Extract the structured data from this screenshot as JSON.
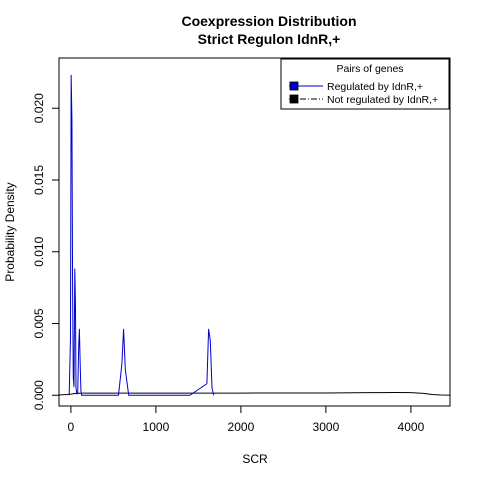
{
  "chart_data": {
    "type": "line",
    "title": "Coexpression Distribution",
    "subtitle": "Strict Regulon IdnR,+",
    "xlabel": "SCR",
    "ylabel": "Probability Density",
    "xlim": [
      -140,
      4460
    ],
    "ylim": [
      -0.00075,
      0.0235
    ],
    "x_ticks": [
      0,
      1000,
      2000,
      3000,
      4000
    ],
    "x_tick_labels": [
      "0",
      "1000",
      "2000",
      "3000",
      "4000"
    ],
    "y_ticks": [
      0,
      0.005,
      0.01,
      0.015,
      0.02
    ],
    "y_tick_labels": [
      "0.000",
      "0.005",
      "0.010",
      "0.015",
      "0.020"
    ],
    "grid": false,
    "legend": {
      "title": "Pairs of genes",
      "position": "top-right",
      "entries": [
        "Regulated by  IdnR,+",
        "Not regulated by  IdnR,+"
      ]
    },
    "series": [
      {
        "name": "Regulated by  IdnR,+",
        "color": "#0000cc",
        "line_style": "solid",
        "x": [
          -20,
          -5,
          3,
          12,
          20,
          28,
          36,
          46,
          54,
          60,
          70,
          80,
          92,
          100,
          110,
          118,
          126,
          150,
          300,
          560,
          600,
          620,
          640,
          680,
          1000,
          1400,
          1600,
          1620,
          1640,
          1660,
          1680
        ],
        "y": [
          0,
          0.004,
          0.0223,
          0.0192,
          0.0075,
          0.0012,
          0.0006,
          0.0088,
          0.0062,
          0.0005,
          0.0001,
          0.0001,
          0.0035,
          0.0046,
          0.002,
          0.0003,
          0,
          0,
          0,
          0,
          0.0022,
          0.0046,
          0.0018,
          0,
          0,
          0,
          0.0008,
          0.0046,
          0.0038,
          0.0005,
          0
        ]
      },
      {
        "name": "Not regulated by  IdnR,+",
        "color": "#000000",
        "line_style": "dashdot",
        "x": [
          -140,
          -50,
          0,
          50,
          100,
          150,
          300,
          1000,
          2000,
          3000,
          3500,
          3800,
          4000,
          4150,
          4250,
          4350,
          4460
        ],
        "y": [
          2e-05,
          5e-05,
          8e-05,
          0.00012,
          0.00014,
          0.00015,
          0.00015,
          0.00015,
          0.00015,
          0.00016,
          0.00018,
          0.00019,
          0.00018,
          0.00013,
          5e-05,
          1.5e-05,
          1e-05
        ]
      }
    ]
  }
}
